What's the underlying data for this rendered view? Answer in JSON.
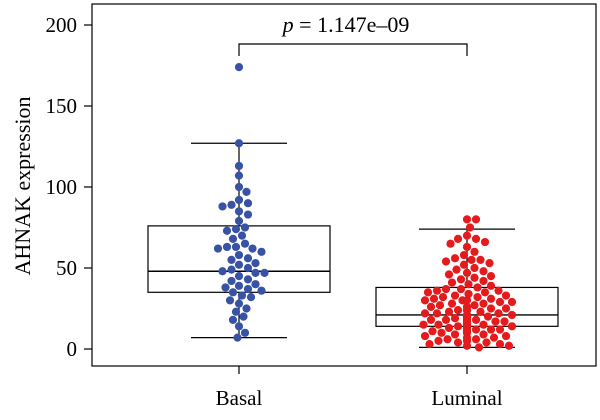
{
  "chart_data": {
    "type": "box",
    "ylabel": "AHNAK expression",
    "xlabel": "",
    "ylim": [
      0,
      210
    ],
    "yticks": [
      0,
      50,
      100,
      150,
      200
    ],
    "grid": false,
    "annotation": {
      "p_symbol": "p",
      "p_text": " = 1.147e–09"
    },
    "groups": [
      {
        "name": "Basal",
        "color": "#3852a4",
        "whisker_low": 7,
        "q1": 35,
        "median": 48,
        "q3": 76,
        "whisker_high": 127,
        "points": [
          174,
          127,
          113,
          107,
          100,
          97,
          92,
          90,
          89,
          88,
          85,
          83,
          79,
          75,
          74,
          73,
          70,
          68,
          65,
          63,
          63,
          62,
          62,
          60,
          58,
          56,
          55,
          53,
          52,
          50,
          49,
          48,
          47,
          47,
          45,
          43,
          42,
          40,
          39,
          38,
          37,
          36,
          35,
          33,
          32,
          30,
          28,
          25,
          23,
          20,
          18,
          14,
          10,
          7
        ]
      },
      {
        "name": "Luminal",
        "color": "#e41a1c",
        "whisker_low": 1,
        "q1": 14,
        "median": 21,
        "q3": 38,
        "whisker_high": 74,
        "points": [
          80,
          80,
          75,
          70,
          68,
          68,
          66,
          65,
          63,
          60,
          58,
          56,
          55,
          55,
          54,
          53,
          52,
          50,
          49,
          48,
          47,
          46,
          45,
          44,
          43,
          42,
          41,
          40,
          39,
          38,
          37,
          37,
          36,
          36,
          35,
          35,
          34,
          33,
          33,
          32,
          32,
          31,
          31,
          30,
          30,
          30,
          29,
          29,
          28,
          28,
          27,
          27,
          26,
          26,
          25,
          25,
          24,
          24,
          24,
          23,
          23,
          22,
          22,
          22,
          21,
          21,
          21,
          20,
          20,
          20,
          19,
          19,
          19,
          18,
          18,
          18,
          17,
          17,
          17,
          16,
          16,
          16,
          15,
          15,
          15,
          15,
          14,
          14,
          14,
          13,
          13,
          13,
          12,
          12,
          12,
          11,
          11,
          10,
          10,
          9,
          9,
          8,
          8,
          7,
          7,
          6,
          6,
          5,
          5,
          4,
          4,
          3,
          3,
          2,
          2,
          1
        ]
      }
    ]
  }
}
